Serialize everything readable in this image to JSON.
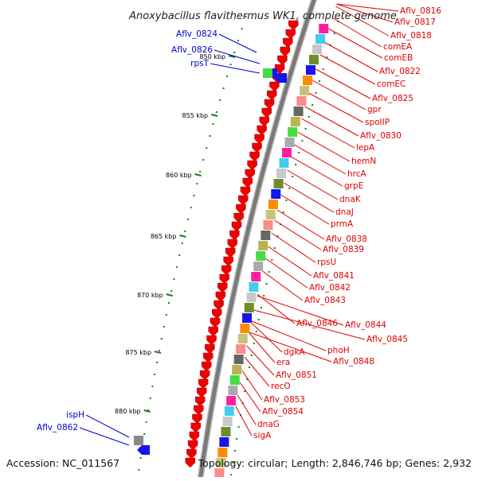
{
  "title": "Anoxybacillus flavithermus WK1, complete genome",
  "footer": {
    "accession": "Accession: NC_011567",
    "summary": "Topology: circular; Length: 2,846,746 bp; Genes: 2,932"
  },
  "colors": {
    "forward_label": "#dd0000",
    "reverse_label": "#0000cc",
    "backbone": "#7a7a7a",
    "tick": "#1f7a1f"
  },
  "ticks": [
    "850 kbp",
    "855 kbp",
    "860 kbp",
    "865 kbp",
    "870 kbp",
    "875 kbp",
    "880 kbp"
  ],
  "labels_right": [
    "Aflv_0816",
    "Aflv_0817",
    "Aflv_0818",
    "comEA",
    "comEB",
    "Aflv_0822",
    "comEC",
    "Aflv_0825",
    "gpr",
    "spoIIP",
    "Aflv_0830",
    "lepA",
    "hemN",
    "hrcA",
    "grpE",
    "dnaK",
    "dnaJ",
    "prmA",
    "Aflv_0838",
    "Aflv_0839",
    "rpsU",
    "Aflv_0841",
    "Aflv_0842",
    "Aflv_0843",
    "Aflv_0844",
    "Aflv_0845",
    "Aflv_0846",
    "phoH",
    "Aflv_0848",
    "dgkA",
    "era",
    "Aflv_0851",
    "recO",
    "Aflv_0853",
    "Aflv_0854",
    "dnaG",
    "sigA"
  ],
  "labels_left": [
    "Aflv_0824",
    "Aflv_0826",
    "rpsT",
    "ispH",
    "Aflv_0862"
  ]
}
